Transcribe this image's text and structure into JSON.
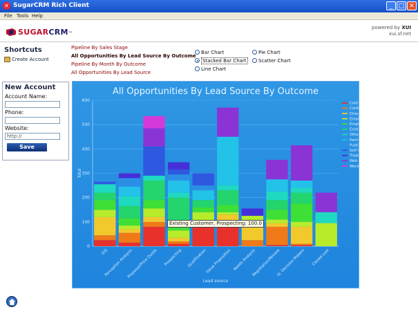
{
  "window": {
    "title": "SugarCRM Rich Client"
  },
  "menu": [
    "File",
    "Tools",
    "Help"
  ],
  "header": {
    "logo_left": "SUGAR",
    "logo_right": "CRM",
    "logo_tm": "™",
    "powered_prefix": "powered by",
    "powered_brand": "XUI",
    "powered_url": "xui.sf.net"
  },
  "sidebar": {
    "shortcuts_title": "Shortcuts",
    "create_account": "Create Account",
    "new_account_title": "New Account",
    "account_name_label": "Account Name:",
    "phone_label": "Phone:",
    "website_label": "Website:",
    "website_value": "http://",
    "save_label": "Save"
  },
  "reports": [
    {
      "label": "Pipeline By Sales Stage",
      "active": false
    },
    {
      "label": "All Opportunities By Lead Source By Outcome",
      "active": true
    },
    {
      "label": "Pipeline By Month By Outcome",
      "active": false
    },
    {
      "label": "All Opportunities By Lead Source",
      "active": false
    }
  ],
  "chart_types": {
    "bar": "Bar Chart",
    "stacked": "Stacked Bar Chart",
    "line": "Line Chart",
    "pie": "Pie Chart",
    "scatter": "Scatter Chart",
    "selected": "stacked"
  },
  "tooltip": "Existing Customer, Prospecting: 100.0",
  "colors": {
    "titlebar": "#1f5fd6",
    "chart_bg": "#2a90e2",
    "logo_red": "#c0102c"
  },
  "chart_data": {
    "type": "bar",
    "stacked": true,
    "title": "All Opportunities By Lead Source By Outcome",
    "xlabel": "Lead source",
    "ylabel": "Total",
    "ylim": [
      0,
      600
    ],
    "yticks": [
      0,
      100,
      200,
      300,
      400,
      500,
      600
    ],
    "grid": true,
    "legend_position": "top-right",
    "categories": [
      "IOS",
      "Perception Analysis",
      "Proposal/Price Quote",
      "Prospecting",
      "Qualification",
      "Value Proposition",
      "Needs Analysis",
      "Negotiation/Review",
      "Id. Decision Makers",
      "Closed Lost"
    ],
    "series": [
      {
        "name": "Cold Call",
        "color": "#e8312b",
        "values": [
          25,
          15,
          80,
          10,
          80,
          80,
          0,
          5,
          5,
          0
        ]
      },
      {
        "name": "Conference",
        "color": "#f07a17",
        "values": [
          20,
          40,
          20,
          10,
          0,
          0,
          25,
          75,
          5,
          0
        ]
      },
      {
        "name": "Direct Mail",
        "color": "#f2c92c",
        "values": [
          75,
          15,
          20,
          15,
          0,
          50,
          75,
          15,
          70,
          0
        ]
      },
      {
        "name": "Email",
        "color": "#b8ec2a",
        "values": [
          30,
          15,
          35,
          30,
          60,
          10,
          25,
          15,
          20,
          95
        ]
      },
      {
        "name": "Employee",
        "color": "#3ee035",
        "values": [
          40,
          30,
          35,
          35,
          20,
          30,
          0,
          40,
          75,
          0
        ]
      },
      {
        "name": "Existing Customer",
        "color": "#24d46c",
        "values": [
          30,
          50,
          80,
          100,
          30,
          60,
          0,
          40,
          45,
          0
        ]
      },
      {
        "name": "Other",
        "color": "#1fd9c0",
        "values": [
          35,
          40,
          20,
          20,
          0,
          20,
          0,
          35,
          20,
          45
        ]
      },
      {
        "name": "Partner",
        "color": "#23c2e8",
        "values": [
          0,
          40,
          0,
          50,
          40,
          200,
          0,
          50,
          30,
          0
        ]
      },
      {
        "name": "Public Relations",
        "color": "#2c8fe6",
        "values": [
          0,
          35,
          0,
          25,
          20,
          0,
          0,
          0,
          0,
          0
        ]
      },
      {
        "name": "Self Generated",
        "color": "#2e58e0",
        "values": [
          10,
          0,
          120,
          20,
          50,
          0,
          0,
          0,
          0,
          0
        ]
      },
      {
        "name": "Trade Show",
        "color": "#4530d8",
        "values": [
          0,
          20,
          0,
          30,
          0,
          0,
          30,
          0,
          0,
          0
        ]
      },
      {
        "name": "Web Site",
        "color": "#8a34d6",
        "values": [
          0,
          0,
          75,
          0,
          0,
          120,
          0,
          80,
          145,
          80
        ]
      },
      {
        "name": "Word of mouth",
        "color": "#d43ad8",
        "values": [
          0,
          0,
          50,
          0,
          0,
          0,
          0,
          0,
          0,
          0
        ]
      }
    ]
  }
}
